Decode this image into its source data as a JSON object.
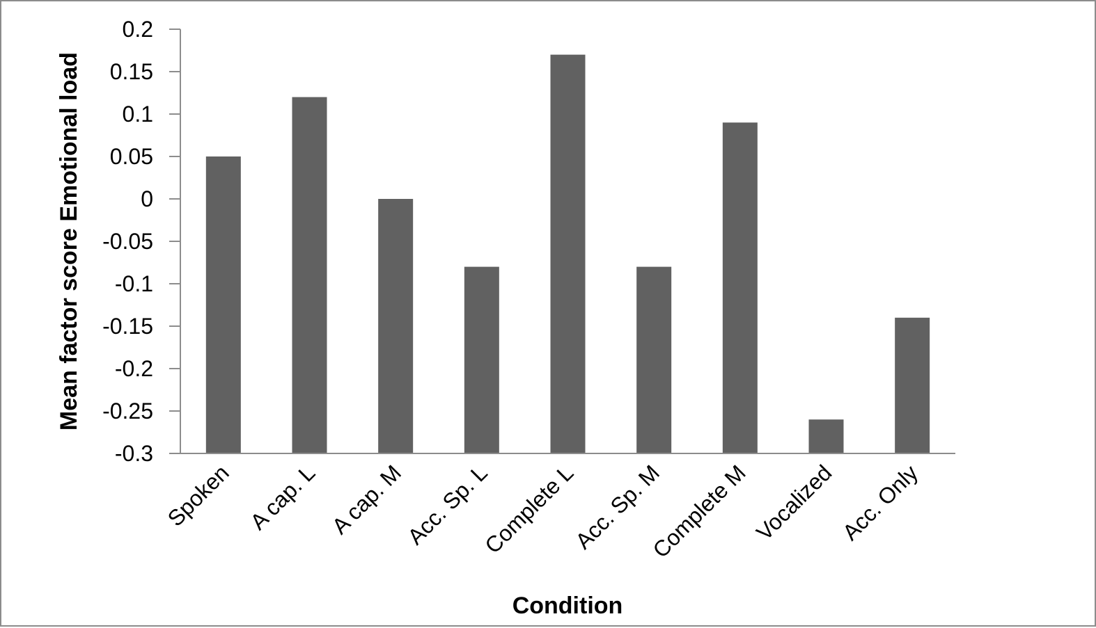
{
  "chart_data": {
    "type": "bar",
    "title": "",
    "xlabel": "Condition",
    "ylabel": "Mean factor score Emotional load",
    "categories": [
      "Spoken",
      "A cap. L",
      "A cap. M",
      "Acc. Sp. L",
      "Complete L",
      "Acc. Sp. M",
      "Complete M",
      "Vocalized",
      "Acc. Only"
    ],
    "values": [
      0.05,
      0.12,
      0.0,
      -0.08,
      0.17,
      -0.08,
      0.09,
      -0.26,
      -0.14
    ],
    "ylim": [
      -0.3,
      0.2
    ],
    "yticks": [
      0.2,
      0.15,
      0.1,
      0.05,
      0,
      -0.05,
      -0.1,
      -0.15,
      -0.2,
      -0.25,
      -0.3
    ],
    "ytick_labels": [
      "0.2",
      "0.15",
      "0.1",
      "0.05",
      "0",
      "-0.05",
      "-0.1",
      "-0.15",
      "-0.2",
      "-0.25",
      "-0.3"
    ],
    "grid": false,
    "legend": "none",
    "bar_color": "#616161",
    "axis_color": "#8c8c8c"
  }
}
